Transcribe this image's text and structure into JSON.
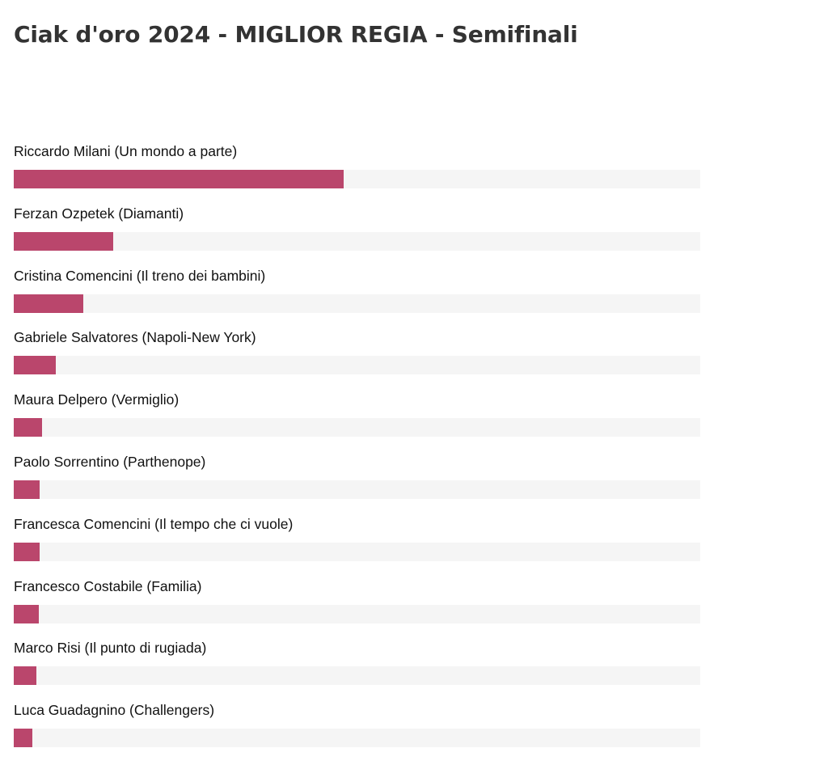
{
  "page": {
    "title": "Ciak d'oro 2024 - MIGLIOR REGIA - Semifinali"
  },
  "colors": {
    "bar_fill": "#ba466c",
    "bar_track": "#f5f5f5",
    "title_text": "#333333"
  },
  "poll": {
    "items": [
      {
        "label": "Riccardo Milani (Un mondo a parte)",
        "share": 0.48
      },
      {
        "label": "Ferzan Ozpetek (Diamanti)",
        "share": 0.145
      },
      {
        "label": "Cristina Comencini (Il treno dei bambini)",
        "share": 0.101
      },
      {
        "label": "Gabriele Salvatores (Napoli-New York)",
        "share": 0.061
      },
      {
        "label": "Maura Delpero (Vermiglio)",
        "share": 0.041
      },
      {
        "label": "Paolo Sorrentino (Parthenope)",
        "share": 0.038
      },
      {
        "label": "Francesca Comencini (Il tempo che ci vuole)",
        "share": 0.038
      },
      {
        "label": "Francesco Costabile (Familia)",
        "share": 0.036
      },
      {
        "label": "Marco Risi (Il punto di rugiada)",
        "share": 0.033
      },
      {
        "label": "Luca Guadagnino (Challengers)",
        "share": 0.027
      }
    ]
  }
}
